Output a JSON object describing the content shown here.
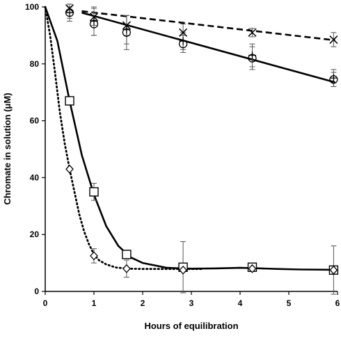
{
  "chart_data": {
    "type": "scatter",
    "xlabel": "Hours of equilibration",
    "ylabel": "Chromate in solution (μM)",
    "xlim": [
      0,
      6
    ],
    "ylim": [
      0,
      100
    ],
    "x_ticks": [
      "0",
      "1",
      "2",
      "3",
      "4",
      "5",
      "6"
    ],
    "y_ticks": [
      "0",
      "20",
      "40",
      "60",
      "80",
      "100"
    ],
    "grid": false,
    "legend": "none",
    "series": [
      {
        "marker": "x",
        "points": [
          {
            "x": 0.5,
            "y": 99.5,
            "err": 1.5
          },
          {
            "x": 1.0,
            "y": 96.5,
            "err": 3
          },
          {
            "x": 1.67,
            "y": 93.5,
            "err": 3.5
          },
          {
            "x": 2.83,
            "y": 91.0,
            "err": 3
          },
          {
            "x": 4.25,
            "y": 91.0,
            "err": 1.5
          },
          {
            "x": 5.92,
            "y": 88.5,
            "err": 2.5
          }
        ],
        "fit": {
          "style": "dashed",
          "points": [
            [
              0.75,
              98.5
            ],
            [
              5.95,
              88.3
            ]
          ]
        }
      },
      {
        "marker": "plus",
        "points": [
          {
            "x": 0.5,
            "y": 98.0,
            "err": 3
          },
          {
            "x": 1.0,
            "y": 95.0,
            "err": 5
          },
          {
            "x": 1.67,
            "y": 92.0,
            "err": 5
          },
          {
            "x": 2.83,
            "y": 88.0,
            "err": 3
          },
          {
            "x": 4.25,
            "y": 83.0,
            "err": 4
          },
          {
            "x": 5.92,
            "y": 75.0,
            "err": 3
          }
        ]
      },
      {
        "marker": "circle",
        "points": [
          {
            "x": 0.5,
            "y": 98.0,
            "err": 2
          },
          {
            "x": 1.0,
            "y": 94.0,
            "err": 4
          },
          {
            "x": 1.67,
            "y": 91.0,
            "err": 6
          },
          {
            "x": 2.83,
            "y": 87.0,
            "err": 3
          },
          {
            "x": 4.25,
            "y": 82.0,
            "err": 4
          },
          {
            "x": 5.92,
            "y": 74.5,
            "err": 2.5
          }
        ],
        "fit": {
          "style": "solid",
          "points": [
            [
              0.75,
              98.0
            ],
            [
              5.95,
              73.5
            ]
          ]
        }
      },
      {
        "marker": "square",
        "points": [
          {
            "x": 0.5,
            "y": 67.0,
            "err": 0
          },
          {
            "x": 1.0,
            "y": 35.0,
            "err": 3
          },
          {
            "x": 1.67,
            "y": 13.0,
            "err": 1.5
          },
          {
            "x": 2.83,
            "y": 8.5,
            "err": 9
          },
          {
            "x": 4.25,
            "y": 8.5,
            "err": 1
          },
          {
            "x": 5.92,
            "y": 7.5,
            "err": 8.5
          }
        ],
        "fit": {
          "style": "solid",
          "points": [
            [
              0.0,
              100
            ],
            [
              0.25,
              88
            ],
            [
              0.5,
              67
            ],
            [
              0.75,
              48
            ],
            [
              1.0,
              34
            ],
            [
              1.25,
              23
            ],
            [
              1.5,
              16
            ],
            [
              1.75,
              12
            ],
            [
              2.0,
              10
            ],
            [
              2.5,
              8.3
            ],
            [
              3.0,
              8.0
            ],
            [
              3.5,
              8.1
            ],
            [
              4.0,
              8.3
            ],
            [
              4.25,
              8.2
            ],
            [
              4.75,
              7.9
            ],
            [
              5.25,
              7.7
            ],
            [
              5.95,
              7.6
            ]
          ]
        }
      },
      {
        "marker": "diamond",
        "points": [
          {
            "x": 0.5,
            "y": 43.0,
            "err": 0
          },
          {
            "x": 1.0,
            "y": 12.5,
            "err": 2.5
          },
          {
            "x": 1.67,
            "y": 8.0,
            "err": 3
          },
          {
            "x": 2.83,
            "y": 7.5,
            "err": 0
          },
          {
            "x": 4.25,
            "y": 8.0,
            "err": 0
          },
          {
            "x": 5.92,
            "y": 7.5,
            "err": 0
          }
        ],
        "fit": {
          "style": "dotted",
          "points": [
            [
              0.0,
              100
            ],
            [
              0.1,
              90
            ],
            [
              0.2,
              77
            ],
            [
              0.3,
              63
            ],
            [
              0.4,
              52
            ],
            [
              0.5,
              43
            ],
            [
              0.6,
              35
            ],
            [
              0.7,
              27
            ],
            [
              0.8,
              21
            ],
            [
              0.9,
              16.5
            ],
            [
              1.0,
              13
            ],
            [
              1.1,
              11
            ],
            [
              1.25,
              9.5
            ],
            [
              1.45,
              8.4
            ],
            [
              1.7,
              8.0
            ],
            [
              2.0,
              7.9
            ],
            [
              2.8,
              7.9
            ],
            [
              3.2,
              7.9
            ]
          ]
        }
      }
    ]
  }
}
